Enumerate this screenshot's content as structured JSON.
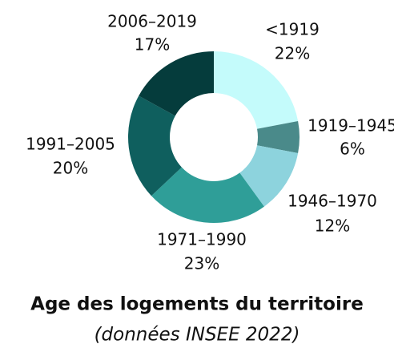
{
  "chart_data": {
    "type": "donut",
    "title": "Age des logements du territoire",
    "subtitle": "(données INSEE 2022)",
    "categories": [
      "<1919",
      "1919–1945",
      "1946–1970",
      "1971–1990",
      "1991–2005",
      "2006–2019"
    ],
    "values": [
      22,
      6,
      12,
      23,
      20,
      17
    ],
    "value_labels": [
      "22%",
      "6%",
      "12%",
      "23%",
      "20%",
      "17%"
    ],
    "colors": [
      "#c4fbfb",
      "#4a8a8a",
      "#8dd3dd",
      "#2f9e98",
      "#0f5f5e",
      "#053c3c"
    ]
  }
}
